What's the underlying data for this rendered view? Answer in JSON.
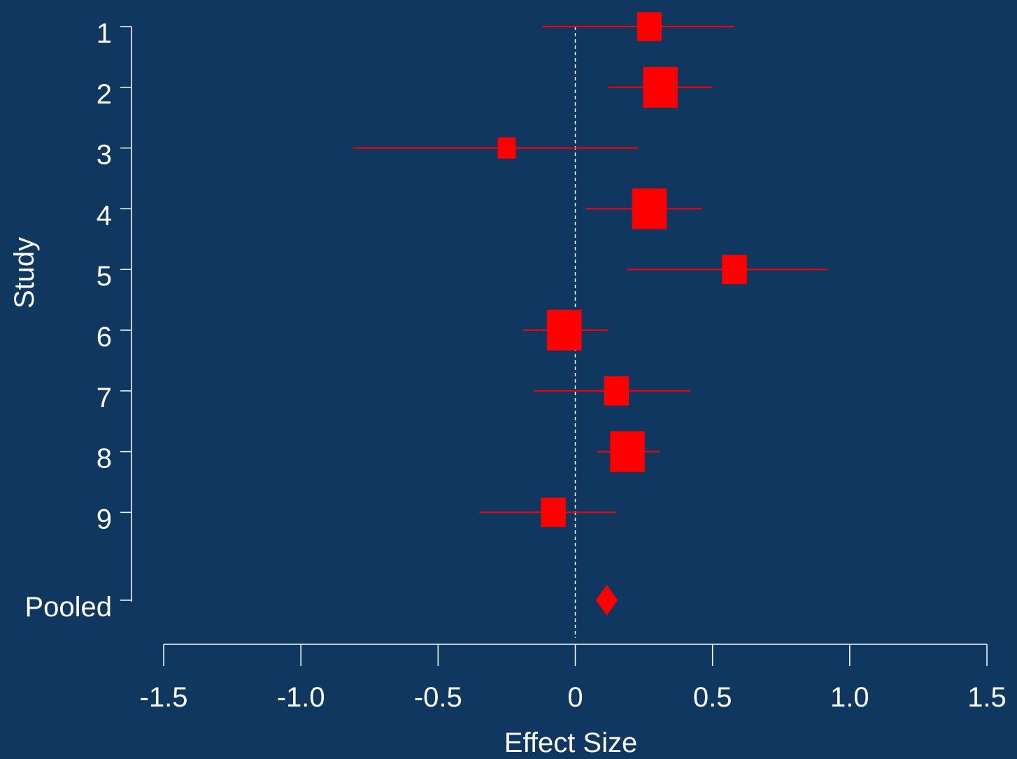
{
  "chart_data": {
    "type": "forest",
    "xlabel": "Effect Size",
    "ylabel": "Study",
    "xlim": [
      -1.5,
      1.5
    ],
    "x_ticks": [
      -1.5,
      -1.0,
      -0.5,
      0,
      0.5,
      1.0,
      1.5
    ],
    "x_tick_labels": [
      "-1.5",
      "-1.0",
      "-0.5",
      "0",
      "0.5",
      "1.0",
      "1.5"
    ],
    "reference_line": 0,
    "studies": [
      {
        "label": "1",
        "estimate": 0.27,
        "ci_lower": -0.12,
        "ci_upper": 0.58,
        "weight": 0.31
      },
      {
        "label": "2",
        "estimate": 0.31,
        "ci_lower": 0.12,
        "ci_upper": 0.5,
        "weight": 0.62
      },
      {
        "label": "3",
        "estimate": -0.25,
        "ci_lower": -0.81,
        "ci_upper": 0.23,
        "weight": 0.17
      },
      {
        "label": "4",
        "estimate": 0.27,
        "ci_lower": 0.04,
        "ci_upper": 0.46,
        "weight": 0.62
      },
      {
        "label": "5",
        "estimate": 0.58,
        "ci_lower": 0.19,
        "ci_upper": 0.92,
        "weight": 0.32
      },
      {
        "label": "6",
        "estimate": -0.04,
        "ci_lower": -0.19,
        "ci_upper": 0.12,
        "weight": 0.62
      },
      {
        "label": "7",
        "estimate": 0.15,
        "ci_lower": -0.15,
        "ci_upper": 0.42,
        "weight": 0.32
      },
      {
        "label": "8",
        "estimate": 0.19,
        "ci_lower": 0.08,
        "ci_upper": 0.31,
        "weight": 0.62
      },
      {
        "label": "9",
        "estimate": -0.08,
        "ci_lower": -0.35,
        "ci_upper": 0.15,
        "weight": 0.32
      }
    ],
    "pooled": {
      "label": "Pooled",
      "estimate": 0.115,
      "ci_lower": 0.075,
      "ci_upper": 0.155
    },
    "colors": {
      "background": "#0f375f",
      "marker": "#ff0000",
      "axis": "#ffffff",
      "text": "#ffffff"
    }
  }
}
